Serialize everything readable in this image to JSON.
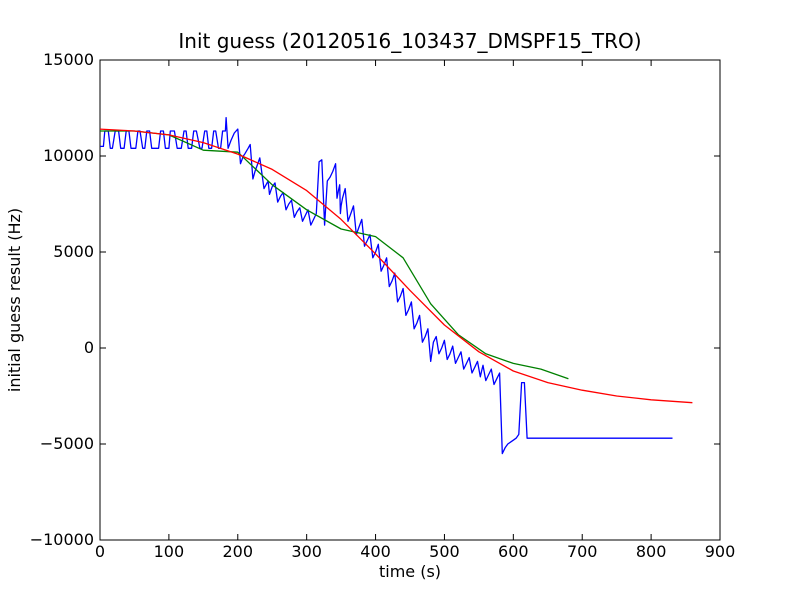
{
  "chart_data": {
    "type": "line",
    "title": "Init guess (20120516_103437_DMSPF15_TRO)",
    "xlabel": "time (s)",
    "ylabel": "initial guess result (Hz)",
    "xlim": [
      0,
      900
    ],
    "ylim": [
      -10000,
      15000
    ],
    "xticks": [
      0,
      100,
      200,
      300,
      400,
      500,
      600,
      700,
      800,
      900
    ],
    "yticks": [
      -10000,
      -5000,
      0,
      5000,
      10000,
      15000
    ],
    "grid": false,
    "legend": "none",
    "series": [
      {
        "color": "#0000ff",
        "x": [
          0,
          5,
          7,
          12,
          15,
          18,
          22,
          27,
          30,
          35,
          38,
          42,
          45,
          52,
          55,
          58,
          62,
          65,
          68,
          72,
          75,
          85,
          88,
          92,
          95,
          100,
          102,
          108,
          112,
          118,
          122,
          125,
          128,
          133,
          136,
          140,
          145,
          148,
          152,
          155,
          158,
          162,
          165,
          168,
          172,
          175,
          178,
          182,
          183,
          186,
          190,
          195,
          200,
          204,
          208,
          210,
          215,
          218,
          222,
          225,
          228,
          232,
          238,
          244,
          246,
          250,
          254,
          258,
          262,
          266,
          270,
          274,
          278,
          282,
          286,
          290,
          294,
          298,
          302,
          306,
          310,
          314,
          318,
          322,
          326,
          330,
          334,
          338,
          342,
          344,
          346,
          348,
          349,
          350,
          352,
          356,
          360,
          364,
          368,
          372,
          376,
          380,
          384,
          388,
          392,
          396,
          400,
          404,
          408,
          412,
          416,
          420,
          424,
          428,
          432,
          436,
          440,
          444,
          448,
          452,
          456,
          460,
          464,
          468,
          472,
          476,
          480,
          484,
          488,
          492,
          496,
          500,
          504,
          508,
          512,
          516,
          520,
          524,
          528,
          532,
          536,
          540,
          544,
          548,
          552,
          554,
          556,
          560,
          564,
          568,
          572,
          576,
          580,
          584,
          588,
          592,
          596,
          600,
          604,
          608,
          612,
          616,
          620,
          624,
          628,
          632,
          636,
          640,
          644,
          648,
          652,
          656,
          660,
          664,
          668,
          672,
          676,
          680,
          684,
          688,
          692,
          695,
          697,
          700,
          730,
          770,
          775,
          790,
          795,
          830,
          831
        ],
        "y": [
          10500,
          10500,
          11300,
          11300,
          10400,
          10400,
          11300,
          11300,
          10400,
          10400,
          11300,
          11300,
          10400,
          10400,
          11300,
          11300,
          10400,
          10400,
          11300,
          11300,
          10400,
          10400,
          11300,
          11300,
          10400,
          10400,
          11300,
          11300,
          10400,
          10400,
          11300,
          11300,
          10400,
          10400,
          11300,
          11300,
          10400,
          10400,
          11300,
          11300,
          10400,
          10400,
          11300,
          11300,
          10400,
          10400,
          11300,
          11300,
          12000,
          10400,
          10800,
          11200,
          11400,
          9600,
          10000,
          10100,
          10400,
          10600,
          8800,
          9200,
          9500,
          9900,
          8300,
          8700,
          8000,
          8400,
          8600,
          7600,
          7900,
          8100,
          7200,
          7500,
          7700,
          6800,
          7100,
          7300,
          6600,
          6900,
          7200,
          6400,
          6700,
          7000,
          9700,
          9800,
          6400,
          8700,
          8900,
          9200,
          9600,
          7800,
          8200,
          8500,
          7000,
          7400,
          7800,
          8300,
          6600,
          7000,
          7400,
          5900,
          6300,
          6700,
          5300,
          5600,
          5900,
          4700,
          5000,
          5400,
          4000,
          4300,
          4700,
          3200,
          3500,
          3900,
          2400,
          2700,
          3100,
          1700,
          2000,
          2400,
          1000,
          1300,
          1700,
          300,
          600,
          1000,
          -700,
          300,
          600,
          -300,
          0,
          400,
          -600,
          -300,
          100,
          -800,
          -500,
          -200,
          -1100,
          -800,
          -500,
          -1300,
          -1000,
          -700,
          -1500,
          -1200,
          -900,
          -1700,
          -1400,
          -1100,
          -1900,
          -1600,
          -1300,
          -5500,
          -5200,
          -5000,
          -4900,
          -4800,
          -4700,
          -4500,
          -1800,
          -1800,
          -4700,
          -4700,
          -4700,
          -4700,
          -4700,
          -4700,
          -4700,
          -4700,
          -4700,
          -4700,
          -4700,
          -4700,
          -4700,
          -4700,
          -4700,
          -4700,
          -4700,
          -4700,
          -4700,
          -4700,
          -4700,
          -4700,
          -4700,
          -4700,
          -4700,
          -4700,
          -4700,
          -4700,
          -4700
        ]
      },
      {
        "color": "#008000",
        "x": [
          0,
          50,
          100,
          150,
          200,
          250,
          300,
          350,
          400,
          440,
          480,
          520,
          560,
          600,
          640,
          680
        ],
        "y": [
          11300,
          11300,
          11100,
          10300,
          10200,
          8500,
          7200,
          6200,
          5800,
          4700,
          2300,
          700,
          -300,
          -800,
          -1100,
          -1600
        ]
      },
      {
        "color": "#ff0000",
        "x": [
          0,
          50,
          100,
          150,
          200,
          250,
          300,
          350,
          400,
          450,
          500,
          550,
          600,
          650,
          700,
          750,
          800,
          860
        ],
        "y": [
          11400,
          11300,
          11100,
          10700,
          10100,
          9300,
          8200,
          6700,
          4900,
          3000,
          1200,
          -200,
          -1200,
          -1800,
          -2200,
          -2500,
          -2700,
          -2850
        ]
      }
    ]
  }
}
